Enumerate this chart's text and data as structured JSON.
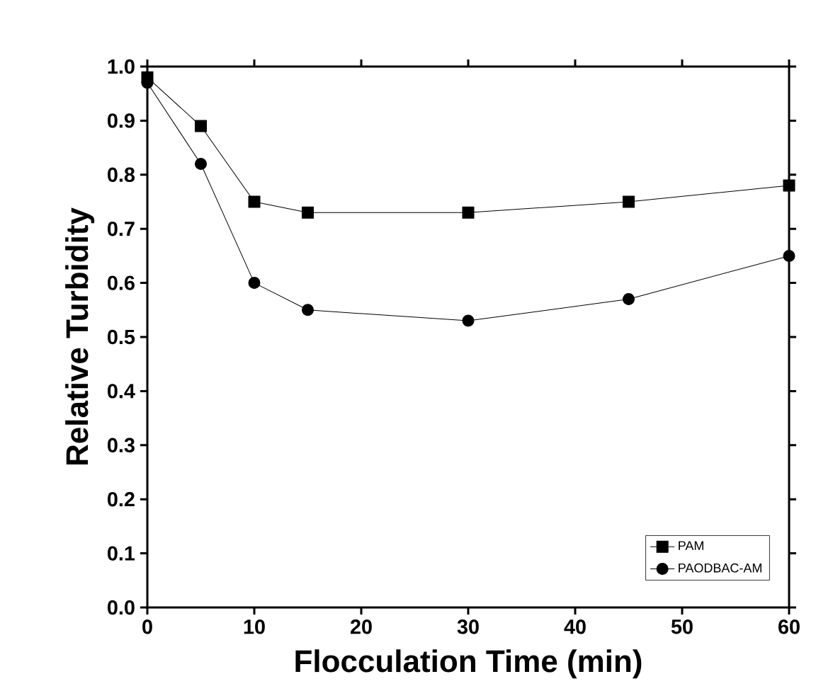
{
  "chart_data": {
    "type": "line",
    "xlabel": "Flocculation Time (min)",
    "ylabel": "Relative Turbidity",
    "x": [
      0,
      5,
      10,
      15,
      30,
      45,
      60
    ],
    "series": [
      {
        "name": "PAM",
        "color": "#000000",
        "marker": "square",
        "values": [
          0.98,
          0.89,
          0.75,
          0.73,
          0.73,
          0.75,
          0.78
        ]
      },
      {
        "name": "PAODBAC-AM",
        "color": "#000000",
        "marker": "circle",
        "values": [
          0.97,
          0.82,
          0.6,
          0.55,
          0.53,
          0.57,
          0.65
        ]
      }
    ],
    "xlim": [
      0,
      60
    ],
    "xticks": [
      0,
      10,
      20,
      30,
      40,
      50,
      60
    ],
    "ylim": [
      0,
      1
    ],
    "yticks": [
      {
        "value": 0,
        "label": "0.0"
      },
      0.1,
      0.2,
      0.3,
      0.4,
      0.5,
      0.6,
      0.7,
      0.8,
      0.9,
      {
        "value": 1,
        "label": "1.0"
      }
    ],
    "legend": "bottom right",
    "grid": false,
    "line_style": "solid"
  }
}
